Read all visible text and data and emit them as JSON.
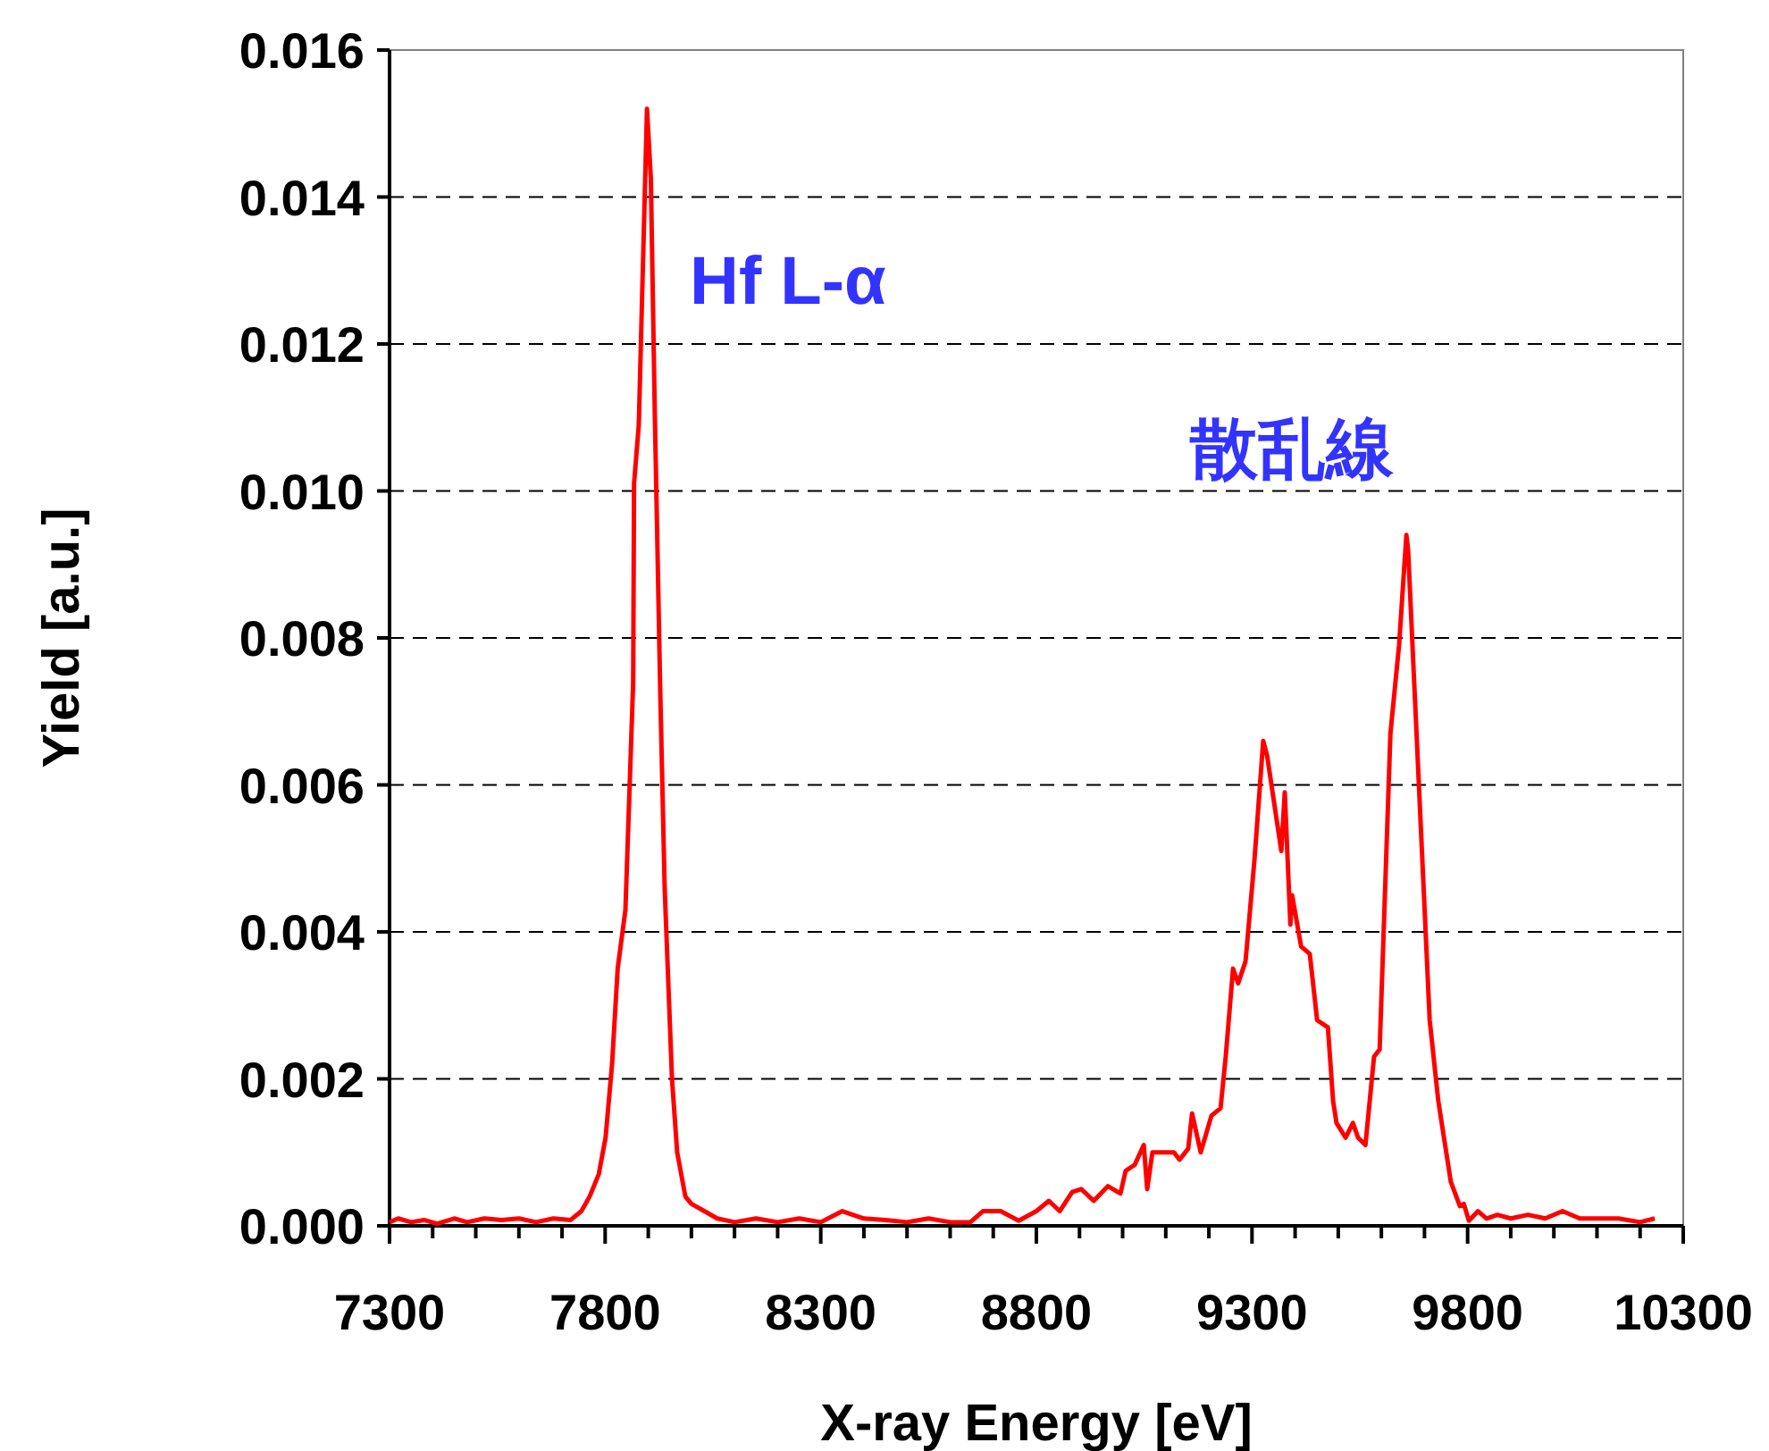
{
  "chart_data": {
    "type": "line",
    "xlabel": "X-ray Energy [eV]",
    "ylabel": "Yield [a.u.]",
    "annotations": [
      "Hf L-α",
      "散乱線"
    ],
    "xlim": [
      7300,
      10300
    ],
    "ylim": [
      0,
      0.016
    ],
    "xticks": [
      7300,
      {
        "value": 7400,
        "label": null
      },
      {
        "value": 7500,
        "label": null
      },
      {
        "value": 7600,
        "label": null
      },
      {
        "value": 7700,
        "label": null
      },
      7800,
      {
        "value": 7900,
        "label": null
      },
      {
        "value": 8000,
        "label": null
      },
      {
        "value": 8100,
        "label": null
      },
      {
        "value": 8200,
        "label": null
      },
      8300,
      {
        "value": 8400,
        "label": null
      },
      {
        "value": 8500,
        "label": null
      },
      {
        "value": 8600,
        "label": null
      },
      {
        "value": 8700,
        "label": null
      },
      8800,
      {
        "value": 8900,
        "label": null
      },
      {
        "value": 9000,
        "label": null
      },
      {
        "value": 9100,
        "label": null
      },
      {
        "value": 9200,
        "label": null
      },
      9300,
      {
        "value": 9400,
        "label": null
      },
      {
        "value": 9500,
        "label": null
      },
      {
        "value": 9600,
        "label": null
      },
      {
        "value": 9700,
        "label": null
      },
      9800,
      {
        "value": 9900,
        "label": null
      },
      {
        "value": 10000,
        "label": null
      },
      {
        "value": 10100,
        "label": null
      },
      {
        "value": 10200,
        "label": null
      },
      10300
    ],
    "yticks": [
      {
        "value": 0,
        "label": "0.000"
      },
      {
        "value": 0.002,
        "label": "0.002"
      },
      {
        "value": 0.004,
        "label": "0.004"
      },
      {
        "value": 0.006,
        "label": "0.006"
      },
      {
        "value": 0.008,
        "label": "0.008"
      },
      {
        "value": 0.01,
        "label": "0.010"
      },
      {
        "value": 0.012,
        "label": "0.012"
      },
      {
        "value": 0.014,
        "label": "0.014"
      },
      {
        "value": 0.016,
        "label": "0.016"
      }
    ],
    "grid": "y",
    "line_style": "solid",
    "marker": "none",
    "series": [
      {
        "color": "#ff0000",
        "x": [
          7300,
          7320,
          7350,
          7380,
          7410,
          7450,
          7480,
          7520,
          7560,
          7600,
          7640,
          7680,
          7720,
          7745,
          7764,
          7785,
          7801,
          7816,
          7829,
          7847,
          7865,
          7867,
          7878,
          7897,
          7906,
          7915,
          7928,
          7938,
          7955,
          7967,
          7986,
          8000,
          8030,
          8060,
          8100,
          8150,
          8200,
          8250,
          8300,
          8350,
          8400,
          8450,
          8500,
          8550,
          8600,
          8647,
          8676,
          8717,
          8759,
          8800,
          8829,
          8854,
          8883,
          8904,
          8933,
          8966,
          8995,
          9007,
          9028,
          9049,
          9057,
          9069,
          9119,
          9132,
          9152,
          9161,
          9181,
          9206,
          9227,
          9239,
          9256,
          9268,
          9285,
          9306,
          9326,
          9335,
          9368,
          9376,
          9389,
          9393,
          9414,
          9434,
          9451,
          9476,
          9488,
          9496,
          9517,
          9534,
          9546,
          9563,
          9583,
          9596,
          9621,
          9641,
          9658,
          9662,
          9712,
          9732,
          9761,
          9782,
          9791,
          9803,
          9824,
          9844,
          9869,
          9900,
          9940,
          9980,
          10020,
          10060,
          10100,
          10150,
          10200,
          10234
        ],
        "values": [
          5e-05,
          0.0001,
          5e-05,
          8e-05,
          3e-05,
          0.0001,
          5e-05,
          0.0001,
          8e-05,
          0.0001,
          5e-05,
          0.0001,
          8e-05,
          0.0002,
          0.0004,
          0.0007,
          0.0012,
          0.0022,
          0.0035,
          0.0043,
          0.0074,
          0.0101,
          0.0109,
          0.0152,
          0.01425,
          0.0111,
          0.0072,
          0.0046,
          0.002,
          0.001,
          0.0004,
          0.0003,
          0.0002,
          0.0001,
          5e-05,
          0.0001,
          5e-05,
          0.0001,
          5e-05,
          0.0002,
          0.0001,
          8e-05,
          5e-05,
          0.0001,
          5e-05,
          5e-05,
          0.0002,
          0.0002,
          7e-05,
          0.0002,
          0.00034,
          0.0002,
          0.00046,
          0.0005,
          0.00034,
          0.00054,
          0.00044,
          0.00075,
          0.00083,
          0.0011,
          0.0005,
          0.001,
          0.001,
          0.0009,
          0.00105,
          0.00153,
          0.001,
          0.0015,
          0.0016,
          0.0023,
          0.0035,
          0.0033,
          0.0036,
          0.005,
          0.0066,
          0.0064,
          0.0051,
          0.0059,
          0.0041,
          0.0045,
          0.0038,
          0.0037,
          0.0028,
          0.0027,
          0.0017,
          0.0014,
          0.0012,
          0.0014,
          0.0012,
          0.0011,
          0.0023,
          0.0024,
          0.0067,
          0.0079,
          0.0094,
          0.0092,
          0.0028,
          0.0017,
          0.0006,
          0.00027,
          0.0003,
          7e-05,
          0.0002,
          0.0001,
          0.00015,
          0.0001,
          0.00015,
          0.0001,
          0.0002,
          0.0001,
          0.0001,
          0.0001,
          5e-05,
          0.0001
        ]
      }
    ]
  }
}
